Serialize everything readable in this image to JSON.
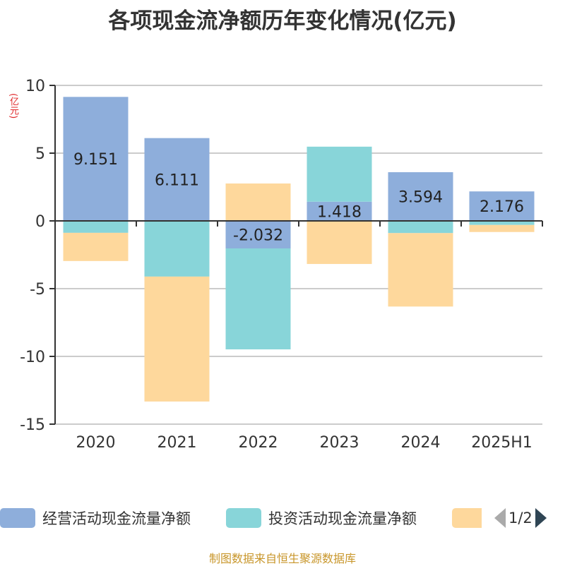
{
  "title": "各项现金流净额历年变化情况(亿元)",
  "unit_label": "(亿元)",
  "source": "制图数据来自恒生聚源数据库",
  "legend": {
    "items": [
      {
        "label": "经营活动现金流量净额",
        "color": "#8eaedb"
      },
      {
        "label": "投资活动现金流量净额",
        "color": "#88d5d9"
      },
      {
        "label": "",
        "color": "#fed89c"
      }
    ],
    "page": "1/2"
  },
  "chart_data": {
    "type": "bar",
    "stacked": true,
    "title": "各项现金流净额历年变化情况(亿元)",
    "ylabel": "(亿元)",
    "ylim": [
      -15,
      10
    ],
    "yticks": [
      10,
      5,
      0,
      -5,
      -10,
      -15
    ],
    "categories": [
      "2020",
      "2021",
      "2022",
      "2023",
      "2024",
      "2025H1"
    ],
    "series": [
      {
        "name": "经营活动现金流量净额",
        "color": "#8eaedb",
        "values": [
          9.151,
          6.111,
          -2.032,
          1.418,
          3.594,
          2.176
        ],
        "labels": [
          "9.151",
          "6.111",
          "-2.032",
          "1.418",
          "3.594",
          "2.176"
        ]
      },
      {
        "name": "投资活动现金流量净额",
        "color": "#88d5d9",
        "values": [
          -0.88,
          -4.11,
          -7.45,
          4.06,
          -0.9,
          -0.3
        ]
      },
      {
        "name": "",
        "color": "#fed89c",
        "values": [
          -2.08,
          -9.22,
          2.76,
          -3.18,
          -5.42,
          -0.52
        ]
      }
    ],
    "grid": true
  }
}
